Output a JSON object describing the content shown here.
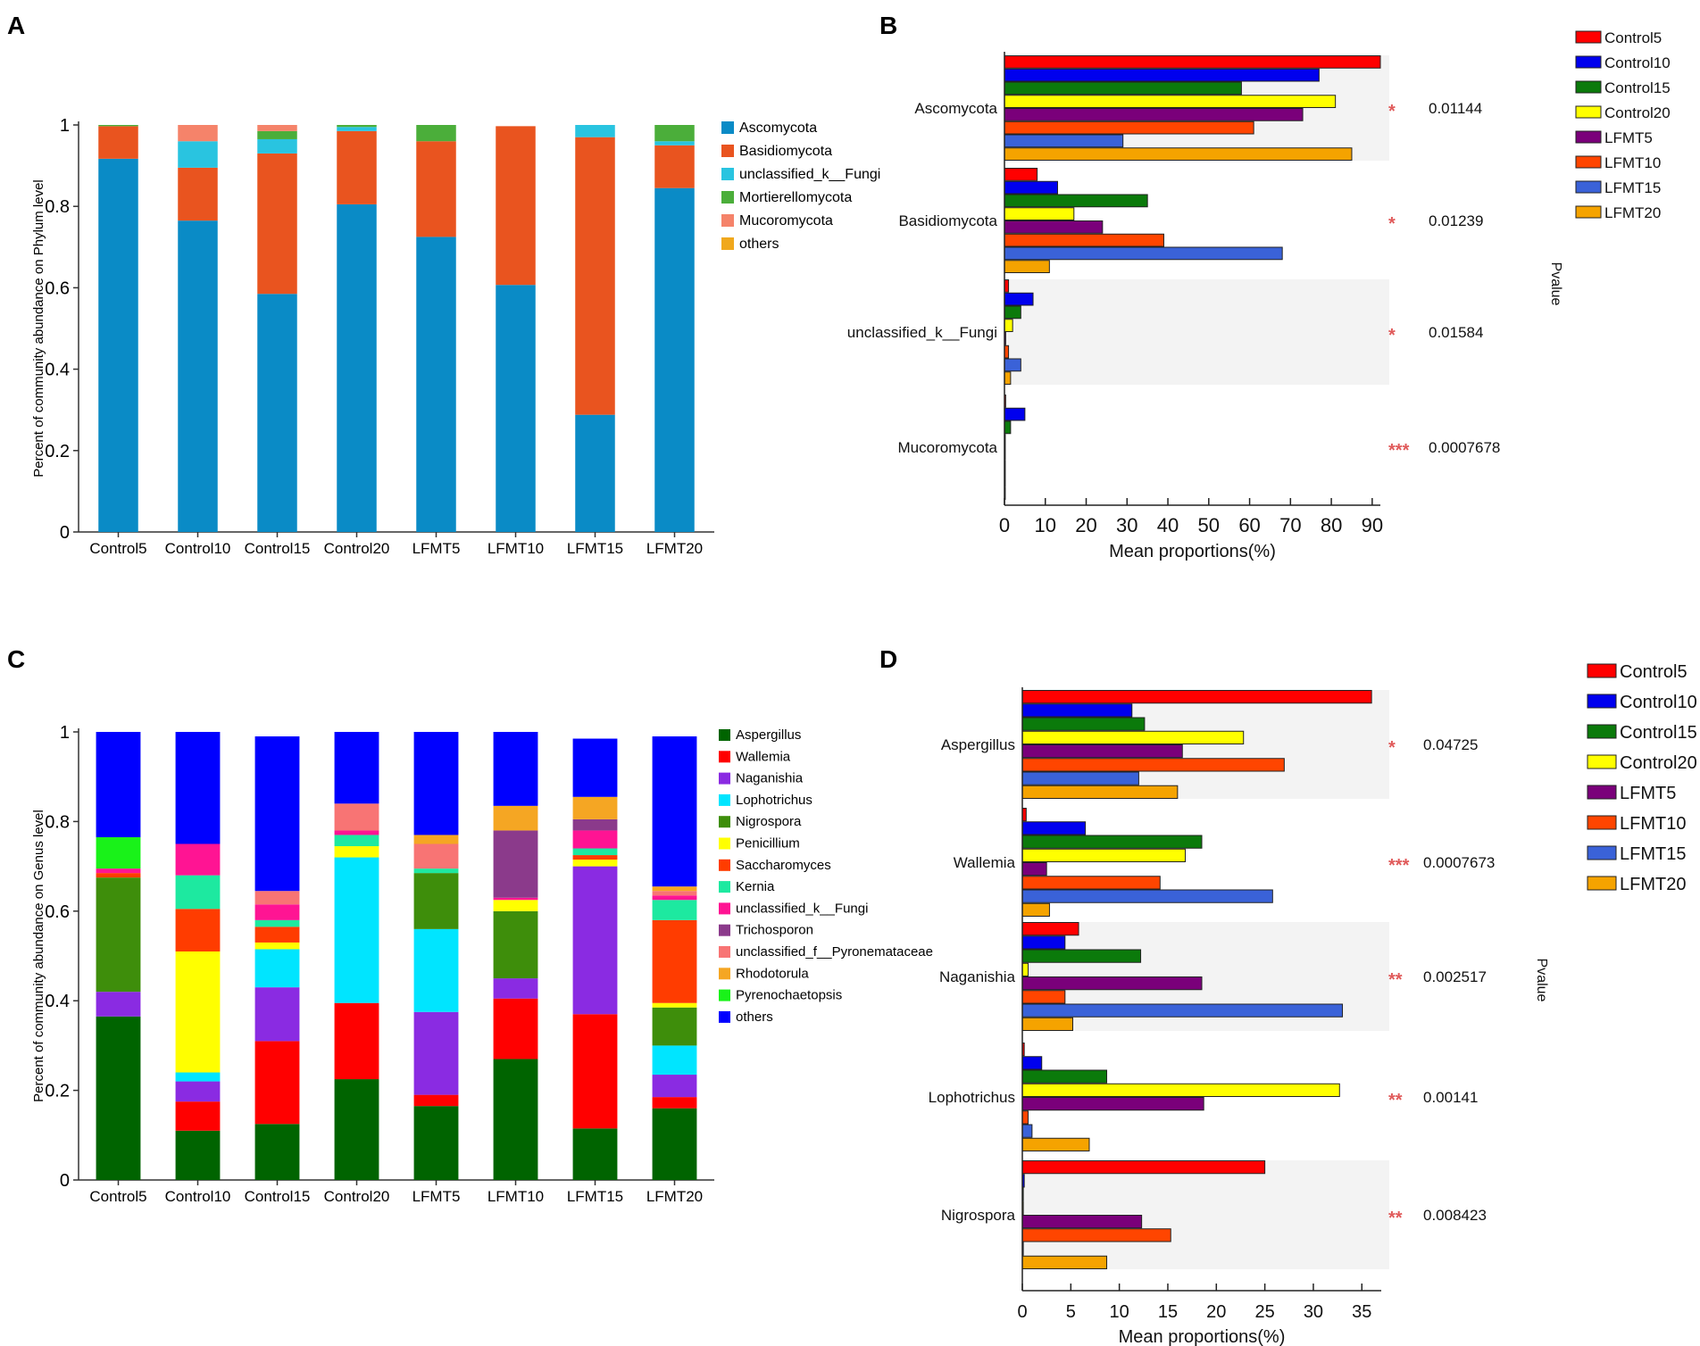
{
  "panels": {
    "A": {
      "letter": "A"
    },
    "B": {
      "letter": "B"
    },
    "C": {
      "letter": "C"
    },
    "D": {
      "letter": "D"
    }
  },
  "chart_data": [
    {
      "id": "A",
      "type": "bar",
      "stacked": true,
      "title": "",
      "xlabel": "",
      "ylabel": "Percent of community abundance on Phylum level",
      "ylim": [
        0,
        1
      ],
      "yticks": [
        "0",
        "0.2",
        "0.4",
        "0.6",
        "0.8",
        "1"
      ],
      "categories": [
        "Control5",
        "Control10",
        "Control15",
        "Control20",
        "LFMT5",
        "LFMT10",
        "LFMT15",
        "LFMT20"
      ],
      "legend_position": "right",
      "series": [
        {
          "name": "Ascomycota",
          "color": "#0a8bc6",
          "values": [
            0.917,
            0.765,
            0.585,
            0.805,
            0.725,
            0.607,
            0.288,
            0.845
          ]
        },
        {
          "name": "Basidiomycota",
          "color": "#e9541f",
          "values": [
            0.08,
            0.13,
            0.345,
            0.18,
            0.235,
            0.39,
            0.682,
            0.105
          ]
        },
        {
          "name": "unclassified_k__Fungi",
          "color": "#29c4e0",
          "values": [
            0.0,
            0.065,
            0.035,
            0.01,
            0.0,
            0.0,
            0.03,
            0.01
          ]
        },
        {
          "name": "Mortierellomycota",
          "color": "#4bae3a",
          "values": [
            0.003,
            0.0,
            0.02,
            0.005,
            0.04,
            0.0,
            0.0,
            0.04
          ]
        },
        {
          "name": "Mucoromycota",
          "color": "#f5836a",
          "values": [
            0.0,
            0.04,
            0.015,
            0.0,
            0.0,
            0.0,
            0.0,
            0.0
          ]
        },
        {
          "name": "others",
          "color": "#f0a81d",
          "values": [
            0.0,
            0.0,
            0.0,
            0.0,
            0.0,
            0.0,
            0.0,
            0.0
          ]
        }
      ]
    },
    {
      "id": "B",
      "type": "bar",
      "orientation": "horizontal",
      "title": "",
      "xlabel": "Mean proportions(%)",
      "ylabel": "Pvalue",
      "xlim": [
        0,
        92
      ],
      "xticks": [
        "0",
        "10",
        "20",
        "30",
        "40",
        "50",
        "60",
        "70",
        "80",
        "90"
      ],
      "categories": [
        "Ascomycota",
        "Basidiomycota",
        "unclassified_k__Fungi",
        "Mucoromycota"
      ],
      "legend_position": "top-right",
      "series": [
        {
          "name": "Control5",
          "color": "#ff0000",
          "values": [
            92,
            8,
            1,
            0.3
          ]
        },
        {
          "name": "Control10",
          "color": "#0000ee",
          "values": [
            77,
            13,
            7,
            5
          ]
        },
        {
          "name": "Control15",
          "color": "#0b7a0b",
          "values": [
            58,
            35,
            4,
            1.5
          ]
        },
        {
          "name": "Control20",
          "color": "#ffff00",
          "values": [
            81,
            17,
            2,
            0.2
          ]
        },
        {
          "name": "LFMT5",
          "color": "#7a007a",
          "values": [
            73,
            24,
            0.3,
            0.2
          ]
        },
        {
          "name": "LFMT10",
          "color": "#ff4500",
          "values": [
            61,
            39,
            1,
            0.2
          ]
        },
        {
          "name": "LFMT15",
          "color": "#3a62d8",
          "values": [
            29,
            68,
            4,
            0.2
          ]
        },
        {
          "name": "LFMT20",
          "color": "#f5a300",
          "values": [
            85,
            11,
            1.5,
            0.2
          ]
        }
      ],
      "significance": [
        "*",
        "*",
        "*",
        "***"
      ],
      "pvalues": [
        "0.01144",
        "0.01239",
        "0.01584",
        "0.0007678"
      ]
    },
    {
      "id": "C",
      "type": "bar",
      "stacked": true,
      "title": "",
      "xlabel": "",
      "ylabel": "Percent of community abundance on Genus level",
      "ylim": [
        0,
        1
      ],
      "yticks": [
        "0",
        "0.2",
        "0.4",
        "0.6",
        "0.8",
        "1"
      ],
      "categories": [
        "Control5",
        "Control10",
        "Control15",
        "Control20",
        "LFMT5",
        "LFMT10",
        "LFMT15",
        "LFMT20"
      ],
      "legend_position": "right",
      "series": [
        {
          "name": "Aspergillus",
          "color": "#006400",
          "values": [
            0.365,
            0.11,
            0.125,
            0.225,
            0.165,
            0.27,
            0.115,
            0.16
          ]
        },
        {
          "name": "Wallemia",
          "color": "#ff0000",
          "values": [
            0.0,
            0.065,
            0.185,
            0.17,
            0.025,
            0.135,
            0.255,
            0.025
          ]
        },
        {
          "name": "Naganishia",
          "color": "#8a2be2",
          "values": [
            0.055,
            0.045,
            0.12,
            0.0,
            0.185,
            0.045,
            0.33,
            0.05
          ]
        },
        {
          "name": "Lophotrichus",
          "color": "#00e5ff",
          "values": [
            0.0,
            0.02,
            0.085,
            0.325,
            0.185,
            0.0,
            0.0,
            0.065
          ]
        },
        {
          "name": "Nigrospora",
          "color": "#3e8e0b",
          "values": [
            0.255,
            0.0,
            0.0,
            0.0,
            0.125,
            0.15,
            0.0,
            0.085
          ]
        },
        {
          "name": "Penicillium",
          "color": "#ffff00",
          "values": [
            0.0,
            0.27,
            0.015,
            0.025,
            0.0,
            0.025,
            0.015,
            0.01
          ]
        },
        {
          "name": "Saccharomyces",
          "color": "#ff3c00",
          "values": [
            0.01,
            0.095,
            0.035,
            0.0,
            0.0,
            0.0,
            0.01,
            0.185
          ]
        },
        {
          "name": "Kernia",
          "color": "#1de9a0",
          "values": [
            0.0,
            0.075,
            0.015,
            0.025,
            0.01,
            0.0,
            0.015,
            0.045
          ]
        },
        {
          "name": "unclassified_k__Fungi",
          "color": "#ff1493",
          "values": [
            0.01,
            0.07,
            0.035,
            0.01,
            0.0,
            0.005,
            0.04,
            0.01
          ]
        },
        {
          "name": "Trichosporon",
          "color": "#8b3a8b",
          "values": [
            0.0,
            0.0,
            0.0,
            0.0,
            0.0,
            0.15,
            0.025,
            0.0
          ]
        },
        {
          "name": "unclassified_f__Pyronemataceae",
          "color": "#f87474",
          "values": [
            0.0,
            0.0,
            0.03,
            0.06,
            0.055,
            0.0,
            0.0,
            0.01
          ]
        },
        {
          "name": "Rhodotorula",
          "color": "#f5a623",
          "values": [
            0.0,
            0.0,
            0.0,
            0.0,
            0.02,
            0.055,
            0.05,
            0.01
          ]
        },
        {
          "name": "Pyrenochaetopsis",
          "color": "#19f219",
          "values": [
            0.07,
            0.0,
            0.0,
            0.0,
            0.0,
            0.0,
            0.0,
            0.0
          ]
        },
        {
          "name": "others",
          "color": "#0000ff",
          "values": [
            0.235,
            0.25,
            0.345,
            0.16,
            0.23,
            0.165,
            0.13,
            0.335
          ]
        }
      ]
    },
    {
      "id": "D",
      "type": "bar",
      "orientation": "horizontal",
      "title": "",
      "xlabel": "Mean proportions(%)",
      "ylabel": "Pvalue",
      "xlim": [
        0,
        37
      ],
      "xticks": [
        "0",
        "5",
        "10",
        "15",
        "20",
        "25",
        "30",
        "35"
      ],
      "categories": [
        "Aspergillus",
        "Wallemia",
        "Naganishia",
        "Lophotrichus",
        "Nigrospora"
      ],
      "legend_position": "top-right",
      "series": [
        {
          "name": "Control5",
          "color": "#ff0000",
          "values": [
            36,
            0.4,
            5.8,
            0.2,
            25
          ]
        },
        {
          "name": "Control10",
          "color": "#0000ee",
          "values": [
            11.3,
            6.5,
            4.4,
            2,
            0.2
          ]
        },
        {
          "name": "Control15",
          "color": "#0b7a0b",
          "values": [
            12.6,
            18.5,
            12.2,
            8.7,
            0.1
          ]
        },
        {
          "name": "Control20",
          "color": "#ffff00",
          "values": [
            22.8,
            16.8,
            0.6,
            32.7,
            0.1
          ]
        },
        {
          "name": "LFMT5",
          "color": "#7a007a",
          "values": [
            16.5,
            2.5,
            18.5,
            18.7,
            12.3
          ]
        },
        {
          "name": "LFMT10",
          "color": "#ff4500",
          "values": [
            27,
            14.2,
            4.4,
            0.6,
            15.3
          ]
        },
        {
          "name": "LFMT15",
          "color": "#3a62d8",
          "values": [
            12,
            25.8,
            33,
            1,
            0.1
          ]
        },
        {
          "name": "LFMT20",
          "color": "#f5a300",
          "values": [
            16,
            2.8,
            5.2,
            6.9,
            8.7
          ]
        }
      ],
      "significance": [
        "*",
        "***",
        "**",
        "**",
        "**"
      ],
      "pvalues": [
        "0.04725",
        "0.0007673",
        "0.002517",
        "0.00141",
        "0.008423"
      ]
    }
  ]
}
